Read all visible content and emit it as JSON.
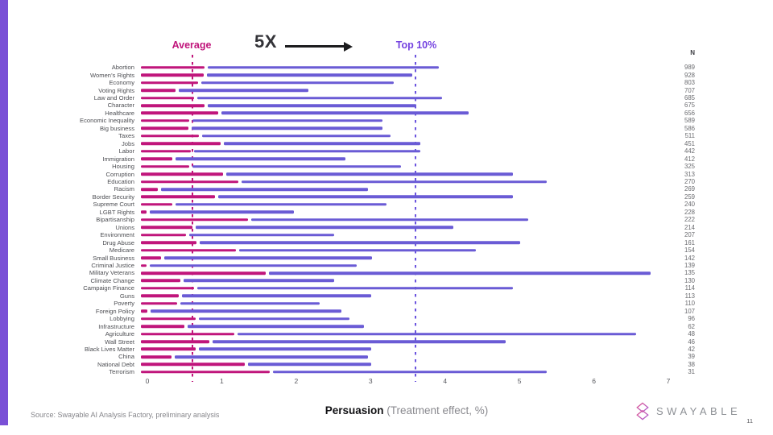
{
  "slide": {
    "source": "Source: Swayable AI Analysis Factory, preliminary analysis",
    "page_number": "11",
    "logo_text": "SWAYABLE"
  },
  "annotations": {
    "average_label": "Average",
    "multiplier_label": "5X",
    "top10_label": "Top 10%"
  },
  "colors": {
    "magenta": "#C0157B",
    "purple": "#6A5BD5",
    "top10_text": "#7442E0",
    "purple_dash": "#6B54DF",
    "accent_bar": "#7A50D6",
    "logo_pink": "#E0558F",
    "logo_violet": "#A85BD4"
  },
  "axis_title": {
    "bold_part": "Persuasion",
    "gray_part": " (Treatment effect, %)"
  },
  "chart_data": {
    "type": "bar",
    "orientation": "horizontal",
    "xlabel": "Persuasion (Treatment effect, %)",
    "xlim": [
      0,
      7
    ],
    "x_ticks": [
      0,
      1,
      2,
      3,
      4,
      5,
      6,
      7
    ],
    "grid": false,
    "n_column_header": "N",
    "series": [
      {
        "name": "Average",
        "color": "#C0157B"
      },
      {
        "name": "Top 10%",
        "color": "#6A5BD5"
      }
    ],
    "reference_lines": [
      {
        "label": "Average",
        "value": 0.6,
        "color": "magenta"
      },
      {
        "label": "Top 10%",
        "value": 3.6,
        "color": "purple"
      }
    ],
    "rows": [
      {
        "label": "Abortion",
        "average": 0.85,
        "top10": 4.0,
        "n": 989
      },
      {
        "label": "Women’s Rights",
        "average": 0.84,
        "top10": 3.65,
        "n": 928
      },
      {
        "label": "Economy",
        "average": 0.77,
        "top10": 3.4,
        "n": 803
      },
      {
        "label": "Voting Rights",
        "average": 0.46,
        "top10": 2.25,
        "n": 707
      },
      {
        "label": "Law and Order",
        "average": 0.71,
        "top10": 4.05,
        "n": 685
      },
      {
        "label": "Character",
        "average": 0.85,
        "top10": 3.7,
        "n": 675
      },
      {
        "label": "Healthcare",
        "average": 1.04,
        "top10": 4.4,
        "n": 656
      },
      {
        "label": "Economic Inequality",
        "average": 0.65,
        "top10": 3.25,
        "n": 589
      },
      {
        "label": "Big business",
        "average": 0.64,
        "top10": 3.25,
        "n": 586
      },
      {
        "label": "Taxes",
        "average": 0.78,
        "top10": 3.35,
        "n": 511
      },
      {
        "label": "Jobs",
        "average": 1.07,
        "top10": 3.75,
        "n": 451
      },
      {
        "label": "Labor",
        "average": 0.67,
        "top10": 3.75,
        "n": 442
      },
      {
        "label": "Immigration",
        "average": 0.42,
        "top10": 2.75,
        "n": 412
      },
      {
        "label": "Housing",
        "average": 0.65,
        "top10": 3.5,
        "n": 325
      },
      {
        "label": "Corruption",
        "average": 1.1,
        "top10": 5.0,
        "n": 313
      },
      {
        "label": "Education",
        "average": 1.31,
        "top10": 5.45,
        "n": 270
      },
      {
        "label": "Racism",
        "average": 0.23,
        "top10": 3.05,
        "n": 269
      },
      {
        "label": "Border Security",
        "average": 0.99,
        "top10": 5.0,
        "n": 259
      },
      {
        "label": "Supreme Court",
        "average": 0.42,
        "top10": 3.3,
        "n": 240
      },
      {
        "label": "LGBT Rights",
        "average": 0.07,
        "top10": 2.05,
        "n": 228
      },
      {
        "label": "Bipartisanship",
        "average": 1.44,
        "top10": 5.2,
        "n": 222
      },
      {
        "label": "Unions",
        "average": 0.69,
        "top10": 4.2,
        "n": 214
      },
      {
        "label": "Environment",
        "average": 0.6,
        "top10": 2.6,
        "n": 207
      },
      {
        "label": "Drug Abuse",
        "average": 0.75,
        "top10": 5.1,
        "n": 161
      },
      {
        "label": "Medicare",
        "average": 1.28,
        "top10": 4.5,
        "n": 154
      },
      {
        "label": "Small Business",
        "average": 0.27,
        "top10": 3.1,
        "n": 142
      },
      {
        "label": "Criminal Justice",
        "average": 0.08,
        "top10": 2.9,
        "n": 139
      },
      {
        "label": "Military Veterans",
        "average": 1.68,
        "top10": 6.85,
        "n": 135
      },
      {
        "label": "Climate Change",
        "average": 0.53,
        "top10": 2.6,
        "n": 130
      },
      {
        "label": "Campaign Finance",
        "average": 0.71,
        "top10": 5.0,
        "n": 114
      },
      {
        "label": "Guns",
        "average": 0.51,
        "top10": 3.1,
        "n": 113
      },
      {
        "label": "Poverty",
        "average": 0.49,
        "top10": 2.4,
        "n": 110
      },
      {
        "label": "Foreign Policy",
        "average": 0.09,
        "top10": 2.7,
        "n": 107
      },
      {
        "label": "Lobbying",
        "average": 0.74,
        "top10": 2.8,
        "n": 96
      },
      {
        "label": "Infrastructure",
        "average": 0.58,
        "top10": 3.0,
        "n": 62
      },
      {
        "label": "Agriculture",
        "average": 1.25,
        "top10": 6.65,
        "n": 48
      },
      {
        "label": "Wall Street",
        "average": 0.92,
        "top10": 4.9,
        "n": 46
      },
      {
        "label": "Black Lives Matter",
        "average": 0.74,
        "top10": 3.1,
        "n": 42
      },
      {
        "label": "China",
        "average": 0.41,
        "top10": 3.05,
        "n": 39
      },
      {
        "label": "National Debt",
        "average": 1.4,
        "top10": 3.1,
        "n": 38
      },
      {
        "label": "Terrorism",
        "average": 1.73,
        "top10": 5.45,
        "n": 31
      }
    ]
  }
}
